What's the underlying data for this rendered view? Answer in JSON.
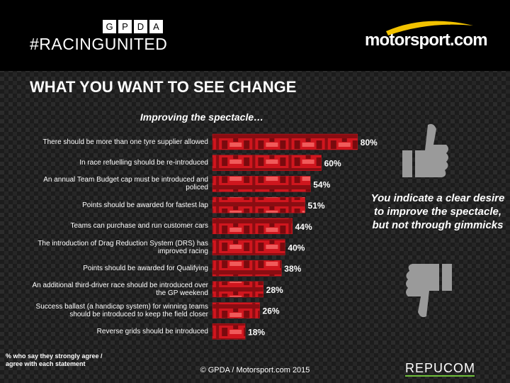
{
  "header": {
    "gpda": [
      "G",
      "P",
      "D",
      "A"
    ],
    "campaign": "#RACINGUNITED",
    "partner": "motorsport.com"
  },
  "chart_data": {
    "type": "bar",
    "orientation": "horizontal",
    "title": "WHAT YOU WANT TO SEE CHANGE",
    "subtitle": "Improving the spectacle…",
    "categories": [
      "There should be more than one tyre supplier allowed",
      "In race refuelling should be re-introduced",
      "An annual Team Budget cap must be introduced and policed",
      "Points should be awarded for fastest lap",
      "Teams can purchase and run customer cars",
      "The introduction of Drag Reduction System (DRS) has improved racing",
      "Points should be awarded for Qualifying",
      "An additional third-driver race should be introduced over the GP weekend",
      "Success ballast (a handicap system) for winning teams should be introduced to keep the field closer",
      "Reverse grids should be introduced"
    ],
    "values": [
      80,
      60,
      54,
      51,
      44,
      40,
      38,
      28,
      26,
      18
    ],
    "value_labels": [
      "80%",
      "60%",
      "54%",
      "51%",
      "44%",
      "40%",
      "38%",
      "28%",
      "26%",
      "18%"
    ],
    "color": "#d0161e",
    "annotation": "You indicate a clear desire to improve the spectacle, but not through gimmicks",
    "footnote": "% who say they strongly agree / agree with each statement"
  },
  "footer": {
    "copyright": "© GPDA / Motorsport.com 2015",
    "sponsor": "REPUCOM"
  }
}
